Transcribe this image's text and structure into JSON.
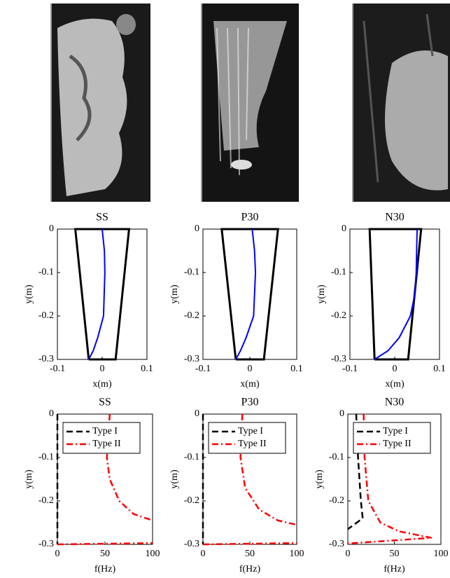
{
  "chart_data": [
    {
      "type": "line",
      "title": "SS",
      "xlabel": "x(m)",
      "ylabel": "y(m)",
      "xlim": [
        -0.1,
        0.1
      ],
      "ylim": [
        -0.3,
        0
      ],
      "xticks": [
        -0.1,
        0,
        0.1
      ],
      "yticks": [
        0,
        -0.1,
        -0.2,
        -0.3
      ],
      "series": [
        {
          "color": "#000000",
          "dash": "solid",
          "x": [
            -0.03,
            -0.06,
            0.06,
            0.03,
            -0.03
          ],
          "y": [
            -0.3,
            0,
            0,
            -0.3,
            -0.3
          ]
        },
        {
          "color": "#0000ff",
          "dash": "solid",
          "x": [
            0,
            0.005,
            0.006,
            0.003,
            -0.01,
            -0.02,
            -0.03
          ],
          "y": [
            0,
            -0.05,
            -0.1,
            -0.2,
            -0.25,
            -0.28,
            -0.3
          ]
        }
      ]
    },
    {
      "type": "line",
      "title": "P30",
      "xlabel": "x(m)",
      "ylabel": "y(m)",
      "xlim": [
        -0.1,
        0.1
      ],
      "ylim": [
        -0.3,
        0
      ],
      "xticks": [
        -0.1,
        0,
        0.1
      ],
      "yticks": [
        0,
        -0.1,
        -0.2,
        -0.3
      ],
      "series": [
        {
          "color": "#000000",
          "dash": "solid",
          "x": [
            -0.03,
            -0.06,
            0.06,
            0.03,
            -0.03
          ],
          "y": [
            -0.3,
            0,
            0,
            -0.3,
            -0.3
          ]
        },
        {
          "color": "#0000ff",
          "dash": "solid",
          "x": [
            0.005,
            0.01,
            0.012,
            0.008,
            -0.008,
            -0.02,
            -0.03
          ],
          "y": [
            0,
            -0.05,
            -0.1,
            -0.2,
            -0.25,
            -0.28,
            -0.3
          ]
        }
      ]
    },
    {
      "type": "line",
      "title": "N30",
      "xlabel": "x(m)",
      "ylabel": "y(m)",
      "xlim": [
        -0.1,
        0.1
      ],
      "ylim": [
        -0.3,
        0
      ],
      "xticks": [
        -0.1,
        0,
        0.1
      ],
      "yticks": [
        0,
        -0.1,
        -0.2,
        -0.3
      ],
      "series": [
        {
          "color": "#000000",
          "dash": "solid",
          "x": [
            -0.045,
            -0.056,
            0.059,
            0.03,
            -0.045
          ],
          "y": [
            -0.3,
            0,
            0,
            -0.3,
            -0.3
          ]
        },
        {
          "color": "#0000ff",
          "dash": "solid",
          "x": [
            0.05,
            0.048,
            0.045,
            0.035,
            0.01,
            -0.015,
            -0.045
          ],
          "y": [
            0,
            -0.1,
            -0.15,
            -0.2,
            -0.25,
            -0.28,
            -0.3
          ]
        }
      ]
    },
    {
      "type": "line",
      "title": "SS",
      "xlabel": "f(Hz)",
      "ylabel": "y(m)",
      "xlim": [
        0,
        100
      ],
      "ylim": [
        -0.3,
        0
      ],
      "xticks": [
        0,
        50,
        100
      ],
      "yticks": [
        0,
        -0.1,
        -0.2,
        -0.3
      ],
      "legend": "upper left",
      "series": [
        {
          "name": "Type I",
          "color": "#000000",
          "dash": "dashed",
          "x": [
            0,
            0
          ],
          "y": [
            0,
            -0.3
          ]
        },
        {
          "name": "Type II",
          "color": "#ff0000",
          "dash": "dashdot",
          "x": [
            55,
            52,
            55,
            65,
            80,
            100,
            null,
            0,
            100
          ],
          "y": [
            0,
            -0.1,
            -0.15,
            -0.2,
            -0.23,
            -0.245,
            null,
            -0.3,
            -0.297
          ]
        }
      ]
    },
    {
      "type": "line",
      "title": "P30",
      "xlabel": "f(Hz)",
      "ylabel": "y(m)",
      "xlim": [
        0,
        100
      ],
      "ylim": [
        -0.3,
        0
      ],
      "xticks": [
        0,
        50,
        100
      ],
      "yticks": [
        0,
        -0.1,
        -0.2,
        -0.3
      ],
      "legend": "upper left",
      "series": [
        {
          "name": "Type I",
          "color": "#000000",
          "dash": "dashed",
          "x": [
            0,
            0
          ],
          "y": [
            0,
            -0.3
          ]
        },
        {
          "name": "Type II",
          "color": "#ff0000",
          "dash": "dashdot",
          "x": [
            42,
            40,
            45,
            60,
            80,
            100,
            null,
            0,
            100
          ],
          "y": [
            0,
            -0.1,
            -0.17,
            -0.22,
            -0.245,
            -0.255,
            null,
            -0.3,
            -0.297
          ]
        }
      ]
    },
    {
      "type": "line",
      "title": "N30",
      "xlabel": "f(Hz)",
      "ylabel": "y(m)",
      "xlim": [
        0,
        100
      ],
      "ylim": [
        -0.3,
        0
      ],
      "xticks": [
        0,
        50,
        100
      ],
      "yticks": [
        0,
        -0.1,
        -0.2,
        -0.3
      ],
      "legend": "upper left",
      "series": [
        {
          "name": "Type I",
          "color": "#000000",
          "dash": "dashed",
          "x": [
            9,
            11,
            14,
            16,
            0
          ],
          "y": [
            0,
            -0.1,
            -0.2,
            -0.24,
            -0.265
          ]
        },
        {
          "name": "Type II",
          "color": "#ff0000",
          "dash": "dashdot",
          "x": [
            17,
            18,
            22,
            35,
            55,
            90,
            0
          ],
          "y": [
            0,
            -0.1,
            -0.2,
            -0.25,
            -0.27,
            -0.285,
            -0.298
          ]
        }
      ]
    }
  ]
}
